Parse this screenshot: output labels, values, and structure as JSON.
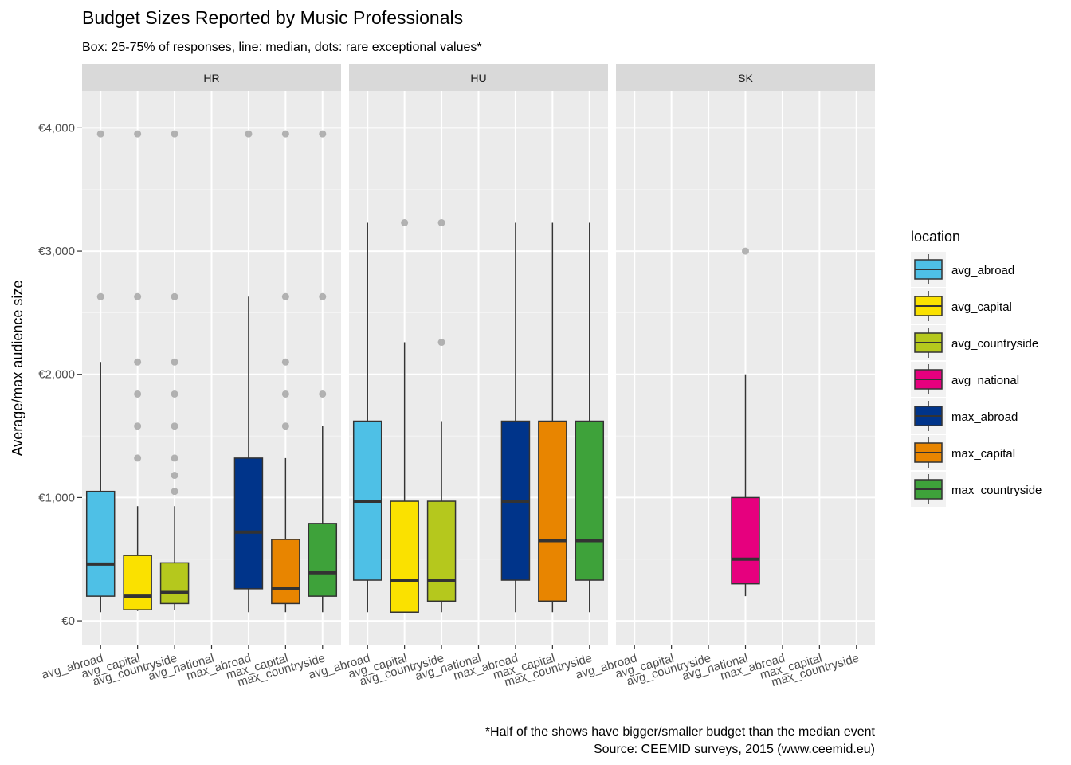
{
  "chart_data": {
    "type": "boxplot",
    "title": "Budget Sizes Reported by Music Professionals",
    "subtitle": "Box: 25-75% of responses, line: median, dots: rare exceptional values*",
    "xlabel": "",
    "ylabel": "Average/max audience size",
    "ylim": [
      -200,
      4300
    ],
    "y_ticks": [
      0,
      1000,
      2000,
      3000,
      4000
    ],
    "y_tick_labels": [
      "€0",
      "€1,000",
      "€2,000",
      "€3,000",
      "€4,000"
    ],
    "categories": [
      "avg_abroad",
      "avg_capital",
      "avg_countryside",
      "avg_national",
      "max_abroad",
      "max_capital",
      "max_countryside"
    ],
    "legend_title": "location",
    "legend_position": "right",
    "colors": {
      "avg_abroad": "#4ec0e6",
      "avg_capital": "#fae100",
      "avg_countryside": "#b5c81d",
      "avg_national": "#e6007e",
      "max_abroad": "#00348a",
      "max_capital": "#e88500",
      "max_countryside": "#3ea23a"
    },
    "panels": [
      {
        "label": "HR",
        "boxes": [
          {
            "category": "avg_abroad",
            "min": 70,
            "q1": 200,
            "median": 460,
            "q3": 1050,
            "max": 2100,
            "outliers": [
              2630,
              3950
            ]
          },
          {
            "category": "avg_capital",
            "min": 80,
            "q1": 90,
            "median": 200,
            "q3": 530,
            "max": 930,
            "outliers": [
              1320,
              1580,
              1840,
              2100,
              2630,
              3950
            ]
          },
          {
            "category": "avg_countryside",
            "min": 90,
            "q1": 140,
            "median": 230,
            "q3": 470,
            "max": 930,
            "outliers": [
              1050,
              1180,
              1320,
              1580,
              1840,
              2100,
              2630,
              3950
            ]
          },
          {
            "category": "max_abroad",
            "min": 70,
            "q1": 260,
            "median": 720,
            "q3": 1320,
            "max": 2630,
            "outliers": [
              3950
            ]
          },
          {
            "category": "max_capital",
            "min": 70,
            "q1": 140,
            "median": 260,
            "q3": 660,
            "max": 1320,
            "outliers": [
              1580,
              1840,
              2100,
              2630,
              3950
            ]
          },
          {
            "category": "max_countryside",
            "min": 70,
            "q1": 200,
            "median": 390,
            "q3": 790,
            "max": 1580,
            "outliers": [
              1840,
              2630,
              3950
            ]
          }
        ]
      },
      {
        "label": "HU",
        "boxes": [
          {
            "category": "avg_abroad",
            "min": 70,
            "q1": 330,
            "median": 970,
            "q3": 1620,
            "max": 3230,
            "outliers": []
          },
          {
            "category": "avg_capital",
            "min": 70,
            "q1": 70,
            "median": 330,
            "q3": 970,
            "max": 2260,
            "outliers": [
              3230
            ]
          },
          {
            "category": "avg_countryside",
            "min": 70,
            "q1": 160,
            "median": 330,
            "q3": 970,
            "max": 1620,
            "outliers": [
              2260,
              3230
            ]
          },
          {
            "category": "max_abroad",
            "min": 70,
            "q1": 330,
            "median": 970,
            "q3": 1620,
            "max": 3230,
            "outliers": []
          },
          {
            "category": "max_capital",
            "min": 70,
            "q1": 160,
            "median": 650,
            "q3": 1620,
            "max": 3230,
            "outliers": []
          },
          {
            "category": "max_countryside",
            "min": 70,
            "q1": 330,
            "median": 650,
            "q3": 1620,
            "max": 3230,
            "outliers": []
          }
        ]
      },
      {
        "label": "SK",
        "boxes": [
          {
            "category": "avg_national",
            "min": 200,
            "q1": 300,
            "median": 500,
            "q3": 1000,
            "max": 2000,
            "outliers": [
              3000
            ]
          }
        ]
      }
    ],
    "caption_lines": [
      "*Half of the shows have bigger/smaller budget than the median event",
      "Source: CEEMID surveys, 2015 (www.ceemid.eu)"
    ]
  }
}
